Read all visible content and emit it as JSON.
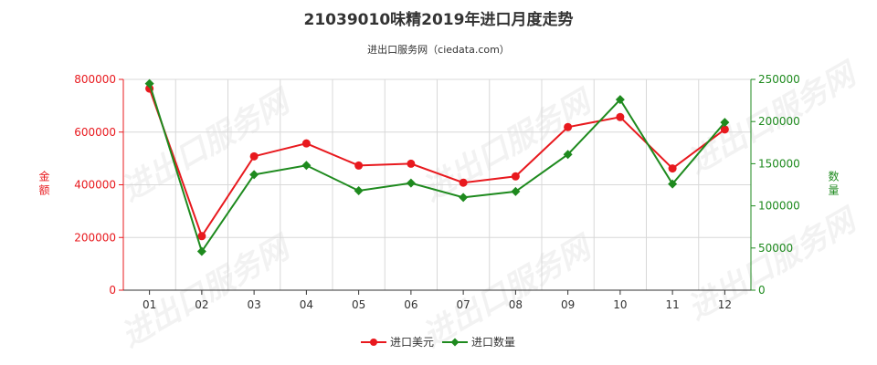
{
  "chart_data": {
    "type": "line",
    "title": "21039010味精2019年进口月度走势",
    "subtitle": "进出口服务网（ciedata.com）",
    "categories": [
      "01",
      "02",
      "03",
      "04",
      "05",
      "06",
      "07",
      "08",
      "09",
      "10",
      "11",
      "12"
    ],
    "left_axis": {
      "label": "金额",
      "range": [
        0,
        800000
      ],
      "ticks": [
        "0",
        "200000",
        "400000",
        "600000",
        "800000"
      ],
      "tick_values": [
        0,
        200000,
        400000,
        600000,
        800000
      ],
      "color": "#e8191e"
    },
    "right_axis": {
      "label": "数量",
      "range": [
        0,
        250000
      ],
      "ticks": [
        "0",
        "50000",
        "100000",
        "150000",
        "200000",
        "250000"
      ],
      "tick_values": [
        0,
        50000,
        100000,
        150000,
        200000,
        250000
      ],
      "color": "#1e8a1e"
    },
    "series": [
      {
        "name": "进口美元",
        "axis": "left",
        "color": "#e8191e",
        "marker": "circle",
        "values": [
          765000,
          205000,
          508000,
          557000,
          473000,
          480000,
          408000,
          432000,
          619000,
          657000,
          462000,
          610000
        ]
      },
      {
        "name": "进口数量",
        "axis": "right",
        "color": "#1e8a1e",
        "marker": "diamond",
        "values": [
          245000,
          46000,
          137000,
          148000,
          118000,
          127000,
          110000,
          117000,
          161000,
          226000,
          126000,
          199000
        ]
      }
    ],
    "grid": true,
    "legend_position": "bottom-center",
    "watermark": "进出口服务网"
  }
}
